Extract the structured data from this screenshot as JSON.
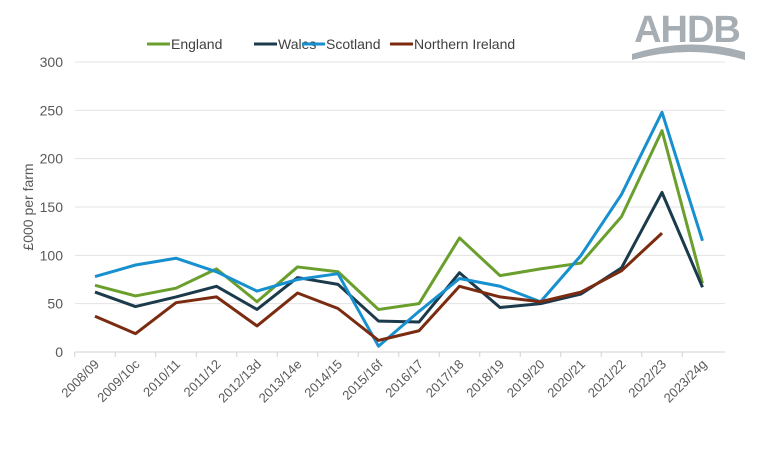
{
  "logo": {
    "text": "AHDB",
    "color": "#a6aeb4"
  },
  "chart_data": {
    "type": "line",
    "title": "",
    "xlabel": "",
    "ylabel": "£000 per farm",
    "ylim": [
      0,
      300
    ],
    "yticks": [
      0,
      50,
      100,
      150,
      200,
      250,
      300
    ],
    "grid": true,
    "legend_position": "top",
    "categories": [
      "2008/09",
      "2009/10c",
      "2010/11",
      "2011/12",
      "2012/13d",
      "2013/14e",
      "2014/15",
      "2015/16f",
      "2016/17",
      "2017/18",
      "2018/19",
      "2019/20",
      "2020/21",
      "2021/22",
      "2022/23",
      "2023/24g"
    ],
    "series": [
      {
        "name": "England",
        "color": "#6a9f2e",
        "values": [
          69,
          58,
          66,
          86,
          52,
          88,
          83,
          44,
          50,
          118,
          79,
          86,
          92,
          140,
          229,
          71
        ]
      },
      {
        "name": "Wales",
        "color": "#1b3a4b",
        "values": [
          62,
          47,
          57,
          68,
          44,
          77,
          70,
          32,
          31,
          82,
          46,
          50,
          60,
          87,
          165,
          67
        ]
      },
      {
        "name": "Scotland",
        "color": "#1790cf",
        "values": [
          78,
          90,
          97,
          83,
          63,
          75,
          81,
          6,
          42,
          76,
          68,
          52,
          100,
          163,
          248,
          115
        ]
      },
      {
        "name": "Northern Ireland",
        "color": "#7b2b10",
        "values": [
          37,
          19,
          51,
          57,
          27,
          61,
          45,
          12,
          22,
          68,
          57,
          52,
          62,
          84,
          123,
          null
        ]
      }
    ]
  }
}
